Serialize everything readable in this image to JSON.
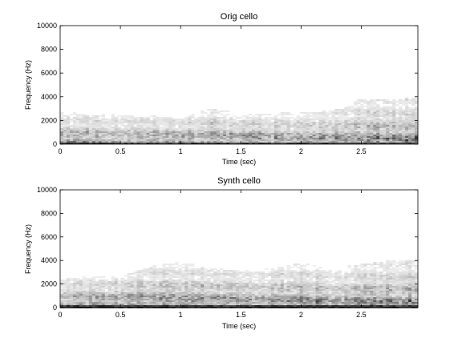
{
  "chart_data": [
    {
      "type": "heatmap",
      "title": "Orig cello",
      "xlabel": "Time (sec)",
      "ylabel": "Frequency (Hz)",
      "xlim": [
        0,
        2.97
      ],
      "ylim": [
        0,
        10000
      ],
      "xticks": [
        0,
        0.5,
        1,
        1.5,
        2,
        2.5
      ],
      "xtick_labels": [
        "0",
        "0.5",
        "1",
        "1.5",
        "2",
        "2.5"
      ],
      "yticks": [
        0,
        2000,
        4000,
        6000,
        8000,
        10000
      ],
      "ytick_labels": [
        "0",
        "2000",
        "4000",
        "6000",
        "8000",
        "10000"
      ],
      "colormap": "grayscale (dark = high energy)",
      "energy_by_time": {
        "time": [
          0,
          0.25,
          0.5,
          0.75,
          1.0,
          1.25,
          1.5,
          1.75,
          2.0,
          2.25,
          2.5,
          2.75,
          2.97
        ],
        "max_freq_hz": [
          2700,
          2600,
          2500,
          2400,
          2200,
          3000,
          2600,
          2600,
          2700,
          2800,
          3800,
          3800,
          3900
        ]
      },
      "grid": false
    },
    {
      "type": "heatmap",
      "title": "Synth cello",
      "xlabel": "Time (sec)",
      "ylabel": "Frequency (Hz)",
      "xlim": [
        0,
        2.97
      ],
      "ylim": [
        0,
        10000
      ],
      "xticks": [
        0,
        0.5,
        1,
        1.5,
        2,
        2.5
      ],
      "xtick_labels": [
        "0",
        "0.5",
        "1",
        "1.5",
        "2",
        "2.5"
      ],
      "yticks": [
        0,
        2000,
        4000,
        6000,
        8000,
        10000
      ],
      "ytick_labels": [
        "0",
        "2000",
        "4000",
        "6000",
        "8000",
        "10000"
      ],
      "colormap": "grayscale (dark = high energy)",
      "energy_by_time": {
        "time": [
          0,
          0.25,
          0.5,
          0.75,
          1.0,
          1.25,
          1.5,
          1.75,
          2.0,
          2.25,
          2.5,
          2.75,
          2.97
        ],
        "max_freq_hz": [
          2700,
          2600,
          2700,
          3500,
          3900,
          3400,
          3100,
          3300,
          3800,
          3300,
          3700,
          4000,
          4000
        ]
      },
      "grid": false
    }
  ]
}
